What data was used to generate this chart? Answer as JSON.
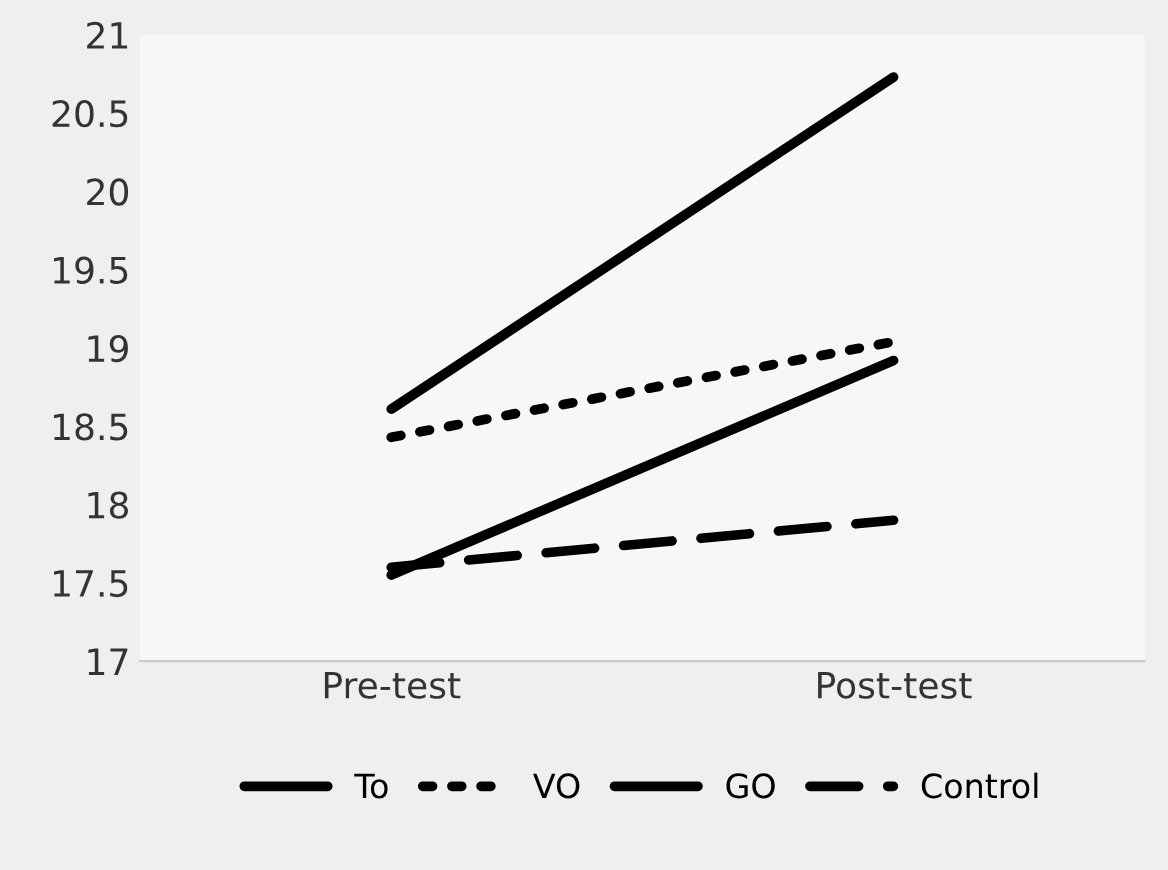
{
  "chart_data": {
    "type": "line",
    "categories": [
      "Pre-test",
      "Post-test"
    ],
    "series": [
      {
        "name": "To",
        "color": "#000000",
        "values": [
          17.55,
          18.92
        ],
        "line_style": "solid"
      },
      {
        "name": "VO",
        "color": "#000000",
        "values": [
          18.43,
          19.04
        ],
        "line_style": "dotted"
      },
      {
        "name": "GO",
        "color": "#000000",
        "values": [
          18.61,
          20.73
        ],
        "line_style": "solid"
      },
      {
        "name": "Control",
        "color": "#000000",
        "values": [
          17.6,
          17.9
        ],
        "line_style": "dashed"
      }
    ],
    "ylim": [
      17,
      21
    ],
    "yticks": [
      17,
      17.5,
      18,
      18.5,
      19,
      19.5,
      20,
      20.5,
      21
    ],
    "grid": false,
    "legend": "bottom",
    "marker": "none"
  }
}
